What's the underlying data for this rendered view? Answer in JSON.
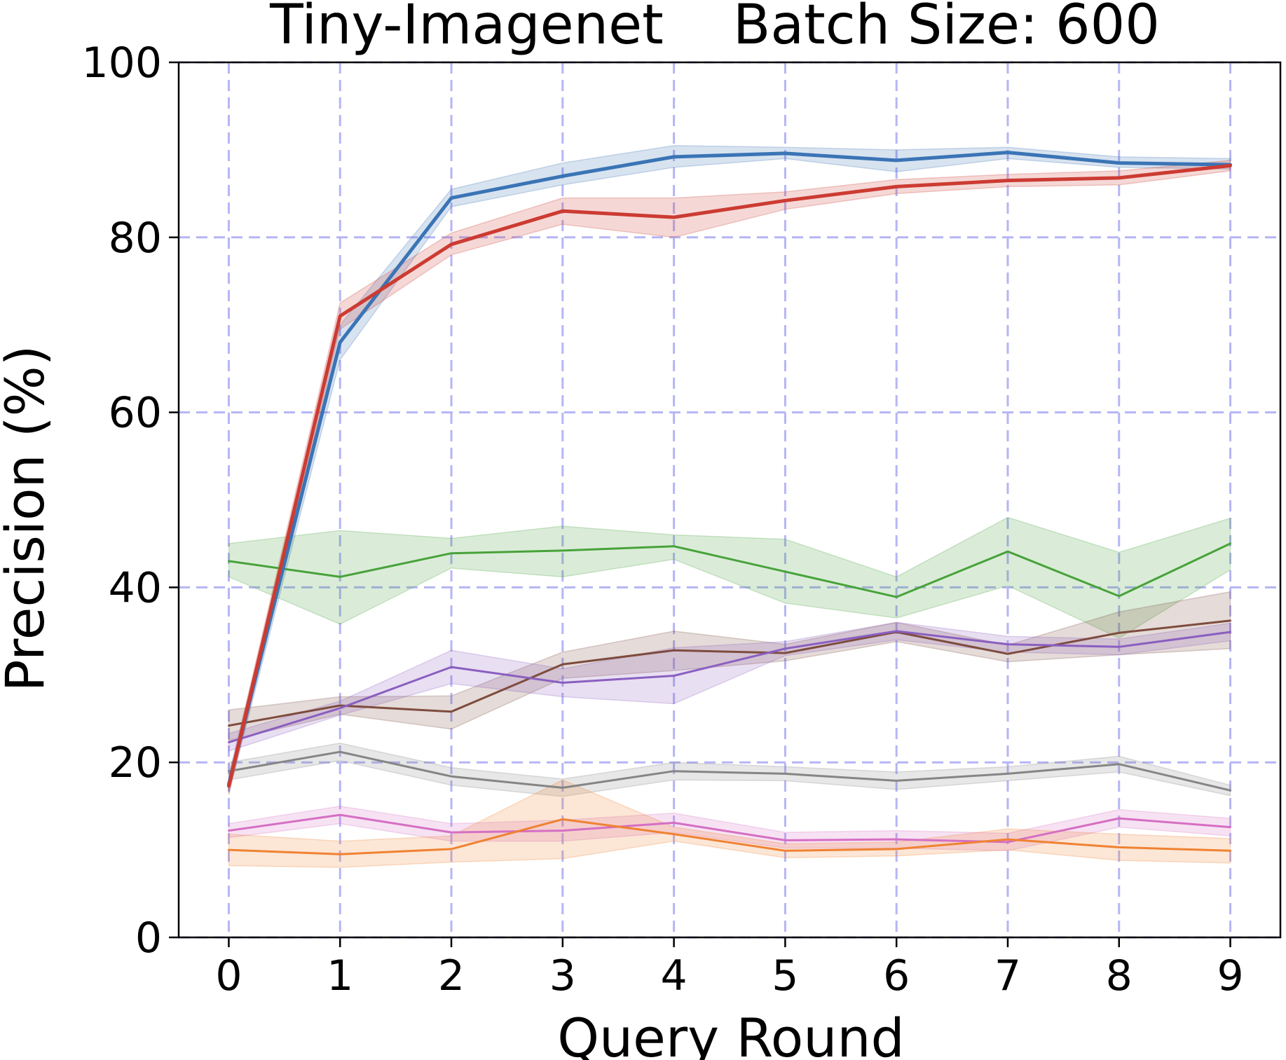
{
  "chart_data": {
    "type": "line",
    "title": "Tiny-Imagenet    Batch Size: 600",
    "xlabel": "Query Round",
    "ylabel": "Precision (%)",
    "xlim": [
      -0.45,
      9.45
    ],
    "ylim": [
      0,
      100
    ],
    "x": [
      0,
      1,
      2,
      3,
      4,
      5,
      6,
      7,
      8,
      9
    ],
    "xticks": [
      "0",
      "1",
      "2",
      "3",
      "4",
      "5",
      "6",
      "7",
      "8",
      "9"
    ],
    "yticks": [
      "0",
      "20",
      "40",
      "60",
      "80",
      "100"
    ],
    "grid": true,
    "grid_color": "#b5b5f5",
    "legend": "none",
    "series": [
      {
        "color": "#3a74b5",
        "width": 5,
        "values": [
          17.5,
          68.0,
          84.5,
          87.0,
          89.2,
          89.6,
          88.8,
          89.7,
          88.5,
          88.3
        ],
        "lower": [
          16.5,
          66.0,
          83.5,
          86.0,
          88.0,
          89.0,
          87.5,
          89.0,
          88.0,
          87.8
        ],
        "upper": [
          18.5,
          70.0,
          85.5,
          88.5,
          90.5,
          90.3,
          90.0,
          90.3,
          89.2,
          89.0
        ]
      },
      {
        "color": "#cc3b32",
        "width": 5,
        "values": [
          17.3,
          71.0,
          79.2,
          83.0,
          82.3,
          84.2,
          85.8,
          86.5,
          86.8,
          88.2
        ],
        "lower": [
          16.3,
          69.5,
          78.0,
          81.5,
          80.0,
          83.2,
          85.0,
          85.8,
          86.0,
          87.6
        ],
        "upper": [
          18.3,
          72.5,
          80.5,
          84.5,
          84.5,
          85.2,
          86.6,
          87.2,
          87.6,
          88.8
        ]
      },
      {
        "color": "#48a23a",
        "width": 3,
        "values": [
          43.0,
          41.2,
          43.9,
          44.2,
          44.7,
          41.8,
          38.9,
          44.1,
          39.0,
          45.0
        ],
        "lower": [
          41.2,
          35.8,
          42.2,
          41.2,
          43.2,
          38.2,
          36.5,
          40.2,
          34.2,
          42.0
        ],
        "upper": [
          45.0,
          46.5,
          45.6,
          47.0,
          46.0,
          45.5,
          41.2,
          48.0,
          44.0,
          47.9
        ]
      },
      {
        "color": "#7d4c3e",
        "width": 3,
        "values": [
          24.2,
          26.5,
          25.8,
          31.2,
          32.8,
          32.5,
          34.9,
          32.4,
          34.8,
          36.2
        ],
        "lower": [
          22.5,
          25.5,
          23.8,
          29.6,
          30.5,
          31.6,
          33.8,
          31.5,
          32.3,
          33.0
        ],
        "upper": [
          26.0,
          27.5,
          27.6,
          32.6,
          35.0,
          33.5,
          36.0,
          33.4,
          37.2,
          39.5
        ]
      },
      {
        "color": "#8a5fc0",
        "width": 3,
        "values": [
          22.3,
          26.2,
          30.9,
          29.1,
          29.9,
          33.0,
          35.0,
          33.5,
          33.2,
          34.9
        ],
        "lower": [
          21.3,
          25.4,
          29.0,
          27.5,
          26.7,
          32.2,
          34.0,
          32.6,
          32.3,
          33.9
        ],
        "upper": [
          23.3,
          27.0,
          32.8,
          30.7,
          33.1,
          33.8,
          36.0,
          34.4,
          34.1,
          35.9
        ]
      },
      {
        "color": "#858585",
        "width": 3,
        "values": [
          19.0,
          21.2,
          18.4,
          17.1,
          19.0,
          18.7,
          17.9,
          18.7,
          19.8,
          16.8
        ],
        "lower": [
          18.0,
          20.2,
          17.4,
          16.1,
          18.0,
          17.9,
          16.9,
          17.9,
          18.9,
          16.2
        ],
        "upper": [
          20.0,
          22.2,
          19.4,
          18.1,
          20.0,
          19.5,
          18.9,
          19.5,
          20.7,
          17.4
        ]
      },
      {
        "color": "#d56fc3",
        "width": 3,
        "values": [
          12.2,
          14.0,
          12.0,
          12.2,
          13.1,
          11.1,
          11.2,
          10.9,
          13.6,
          12.6
        ],
        "lower": [
          11.4,
          13.0,
          11.0,
          11.0,
          12.0,
          10.2,
          10.2,
          9.9,
          12.6,
          11.6
        ],
        "upper": [
          13.0,
          15.0,
          13.0,
          13.4,
          14.2,
          12.0,
          12.2,
          11.9,
          14.6,
          13.6
        ]
      },
      {
        "color": "#ef8232",
        "width": 3,
        "values": [
          10.0,
          9.5,
          10.1,
          13.5,
          11.8,
          9.9,
          10.1,
          11.2,
          10.3,
          9.9
        ],
        "lower": [
          8.2,
          8.0,
          8.6,
          9.0,
          11.0,
          9.1,
          9.3,
          10.0,
          8.8,
          8.5
        ],
        "upper": [
          11.8,
          11.0,
          11.6,
          18.0,
          12.6,
          10.7,
          10.9,
          12.4,
          11.8,
          11.3
        ]
      }
    ]
  }
}
